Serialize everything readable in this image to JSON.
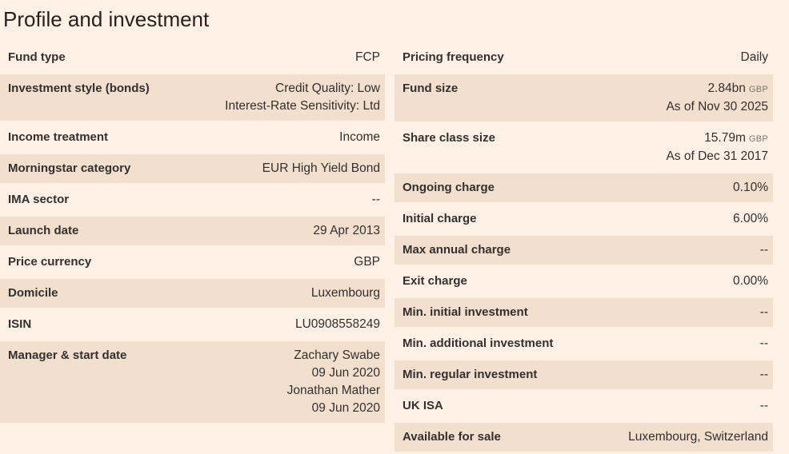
{
  "title": "Profile and investment",
  "colors": {
    "page_bg": "#FFF1E5",
    "stripe_bg": "#F2DFCE",
    "text": "#33302E",
    "muted": "#7E756C"
  },
  "left_rows": [
    {
      "label": "Fund type",
      "values": [
        "FCP"
      ]
    },
    {
      "label": "Investment style (bonds)",
      "values": [
        "Credit Quality: Low",
        "Interest-Rate Sensitivity: Ltd"
      ]
    },
    {
      "label": "Income treatment",
      "values": [
        "Income"
      ]
    },
    {
      "label": "Morningstar category",
      "values": [
        "EUR High Yield Bond"
      ]
    },
    {
      "label": "IMA sector",
      "values": [
        "--"
      ]
    },
    {
      "label": "Launch date",
      "values": [
        "29 Apr 2013"
      ]
    },
    {
      "label": "Price currency",
      "values": [
        "GBP"
      ]
    },
    {
      "label": "Domicile",
      "values": [
        "Luxembourg"
      ]
    },
    {
      "label": "ISIN",
      "values": [
        "LU0908558249"
      ]
    },
    {
      "label": "Manager & start date",
      "values": [
        "Zachary Swabe",
        "09 Jun 2020",
        "Jonathan Mather",
        "09 Jun 2020"
      ]
    }
  ],
  "right_rows": [
    {
      "label": "Pricing frequency",
      "values": [
        "Daily"
      ]
    },
    {
      "label": "Fund size",
      "values": [
        {
          "text": "2.84bn",
          "suffix": "GBP"
        },
        "As of Nov 30 2025"
      ]
    },
    {
      "label": "Share class size",
      "values": [
        {
          "text": "15.79m",
          "suffix": "GBP"
        },
        "As of Dec 31 2017"
      ]
    },
    {
      "label": "Ongoing charge",
      "values": [
        "0.10%"
      ]
    },
    {
      "label": "Initial charge",
      "values": [
        "6.00%"
      ]
    },
    {
      "label": "Max annual charge",
      "values": [
        "--"
      ]
    },
    {
      "label": "Exit charge",
      "values": [
        "0.00%"
      ]
    },
    {
      "label": "Min. initial investment",
      "values": [
        "--"
      ]
    },
    {
      "label": "Min. additional investment",
      "values": [
        "--"
      ]
    },
    {
      "label": "Min. regular investment",
      "values": [
        "--"
      ]
    },
    {
      "label": "UK ISA",
      "values": [
        "--"
      ]
    },
    {
      "label": "Available for sale",
      "values": [
        "Luxembourg, Switzerland"
      ]
    }
  ]
}
